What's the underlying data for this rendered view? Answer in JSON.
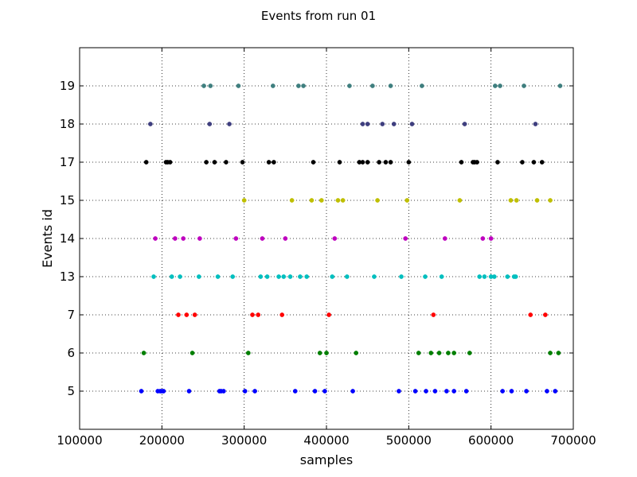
{
  "chart_data": {
    "type": "scatter",
    "title": "Events from run 01",
    "xlabel": "samples",
    "ylabel": "Events id",
    "xlim": [
      100000,
      700000
    ],
    "x_ticks": [
      100000,
      200000,
      300000,
      400000,
      500000,
      600000,
      700000
    ],
    "y_ticks": [
      "5",
      "6",
      "7",
      "13",
      "14",
      "15",
      "17",
      "18",
      "19"
    ],
    "grid": true,
    "series": [
      {
        "category": "5",
        "color": "#0000ff",
        "x": [
          175000,
          195000,
          198000,
          200000,
          202000,
          233000,
          270000,
          272000,
          275000,
          301000,
          313000,
          362000,
          386000,
          398000,
          432000,
          488000,
          508000,
          521000,
          532000,
          546000,
          555000,
          570000,
          614000,
          625000,
          643000,
          668000,
          678000
        ]
      },
      {
        "category": "6",
        "color": "#007f00",
        "x": [
          178000,
          237000,
          305000,
          392000,
          400000,
          436000,
          512000,
          527000,
          537000,
          548000,
          555000,
          574000,
          672000,
          682000
        ]
      },
      {
        "category": "7",
        "color": "#ff0000",
        "x": [
          220000,
          230000,
          240000,
          310000,
          317000,
          346000,
          403000,
          530000,
          648000,
          666000
        ]
      },
      {
        "category": "13",
        "color": "#00bfbf",
        "x": [
          190000,
          212000,
          222000,
          245000,
          268000,
          286000,
          320000,
          328000,
          342000,
          348000,
          356000,
          368000,
          376000,
          407000,
          425000,
          458000,
          491000,
          520000,
          540000,
          586000,
          592000,
          600000,
          604000,
          620000,
          628000,
          630000
        ]
      },
      {
        "category": "14",
        "color": "#bf00bf",
        "x": [
          192000,
          216000,
          226000,
          246000,
          290000,
          322000,
          350000,
          410000,
          496000,
          544000,
          590000,
          600000
        ]
      },
      {
        "category": "15",
        "color": "#bfbf00",
        "x": [
          300000,
          358000,
          382000,
          394000,
          414000,
          420000,
          462000,
          498000,
          562000,
          624000,
          631000,
          656000,
          672000
        ]
      },
      {
        "category": "17",
        "color": "#000000",
        "x": [
          181000,
          205000,
          207000,
          210000,
          254000,
          264000,
          278000,
          298000,
          330000,
          336000,
          384000,
          416000,
          440000,
          444000,
          450000,
          464000,
          472000,
          478000,
          500000,
          564000,
          578000,
          580000,
          583000,
          608000,
          638000,
          652000,
          662000
        ]
      },
      {
        "category": "18",
        "color": "#3f3f7f",
        "x": [
          186000,
          258000,
          282000,
          444000,
          450000,
          468000,
          482000,
          504000,
          568000,
          654000
        ]
      },
      {
        "category": "19",
        "color": "#3f7f7f",
        "x": [
          251000,
          259000,
          293000,
          335000,
          366000,
          372000,
          428000,
          456000,
          478000,
          516000,
          605000,
          611000,
          640000,
          684000
        ]
      }
    ]
  }
}
